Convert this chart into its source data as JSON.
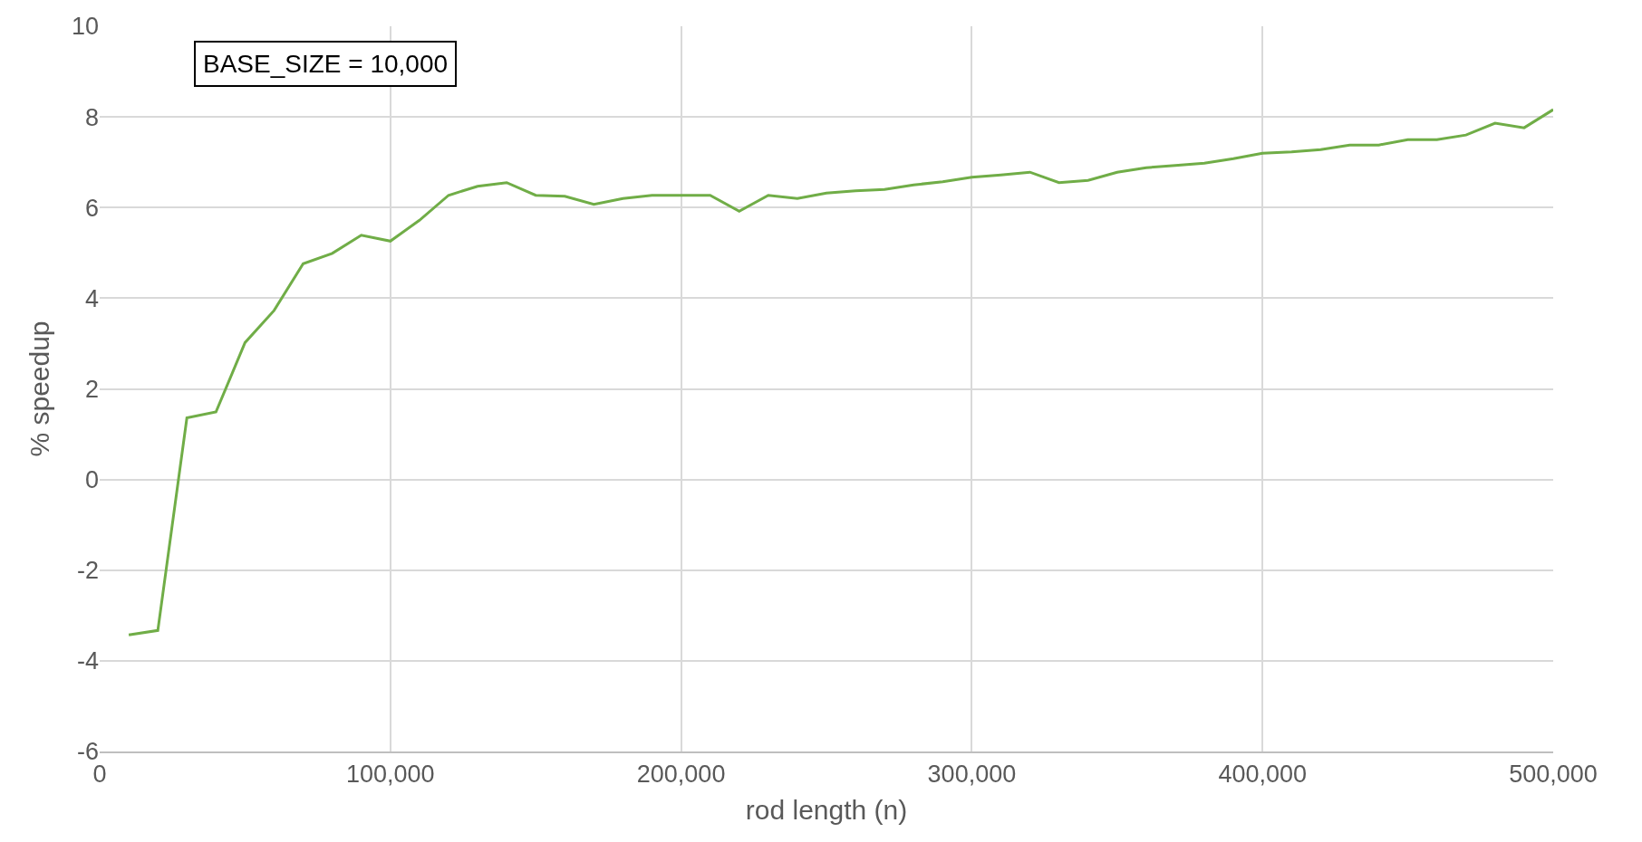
{
  "chart_data": {
    "type": "line",
    "xlabel": "rod length (n)",
    "ylabel": "% speedup",
    "annotations": [
      "BASE_SIZE = 10,000"
    ],
    "x": [
      10000,
      20000,
      30000,
      40000,
      50000,
      60000,
      70000,
      80000,
      90000,
      100000,
      110000,
      120000,
      130000,
      140000,
      150000,
      160000,
      170000,
      180000,
      190000,
      200000,
      210000,
      220000,
      230000,
      240000,
      250000,
      260000,
      270000,
      280000,
      290000,
      300000,
      310000,
      320000,
      330000,
      340000,
      350000,
      360000,
      370000,
      380000,
      390000,
      400000,
      410000,
      420000,
      430000,
      440000,
      450000,
      460000,
      470000,
      480000,
      490000,
      500000
    ],
    "series": [
      {
        "color": "#70ad47",
        "values": [
          -3.43,
          -3.33,
          1.36,
          1.49,
          3.02,
          3.73,
          4.76,
          4.99,
          5.39,
          5.26,
          5.72,
          6.27,
          6.47,
          6.55,
          6.27,
          6.25,
          6.07,
          6.2,
          6.27,
          6.27,
          6.27,
          5.92,
          6.27,
          6.2,
          6.32,
          6.37,
          6.4,
          6.5,
          6.57,
          6.67,
          6.72,
          6.78,
          6.55,
          6.6,
          6.78,
          6.88,
          6.93,
          6.98,
          7.08,
          7.2,
          7.23,
          7.28,
          7.38,
          7.38,
          7.5,
          7.5,
          7.6,
          7.86,
          7.76,
          8.16
        ]
      }
    ],
    "xlim": [
      0,
      500000
    ],
    "xticks": [
      0,
      {
        "value": 100000,
        "label": "100,000"
      },
      {
        "value": 200000,
        "label": "200,000"
      },
      {
        "value": 300000,
        "label": "300,000"
      },
      {
        "value": 400000,
        "label": "400,000"
      },
      {
        "value": 500000,
        "label": "500,000"
      }
    ],
    "ylim": [
      -6,
      10
    ],
    "yticks": [
      -6,
      -4,
      -2,
      0,
      2,
      4,
      6,
      8,
      10
    ],
    "grid": true,
    "marker": "none",
    "line_style": "solid"
  }
}
